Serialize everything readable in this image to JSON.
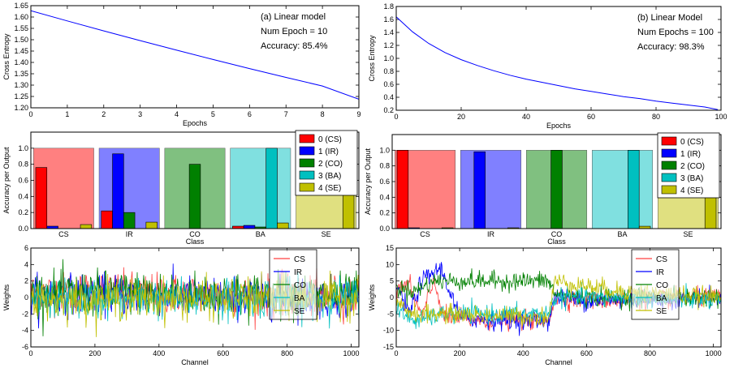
{
  "chart_data": [
    {
      "id": "a",
      "type": "line",
      "xlabel": "Epochs",
      "ylabel": "Cross Entropy",
      "xlim": [
        0,
        9
      ],
      "ylim": [
        1.2,
        1.65
      ],
      "xticks": [
        "0",
        "1",
        "2",
        "3",
        "4",
        "5",
        "6",
        "7",
        "8",
        "9"
      ],
      "yticks": [
        "1.20",
        "1.25",
        "1.30",
        "1.35",
        "1.40",
        "1.45",
        "1.50",
        "1.55",
        "1.60",
        "1.65"
      ],
      "annotation": [
        "(a) Linear model",
        "Num Epoch = 10",
        "Accuracy: 85.4%"
      ],
      "series": [
        {
          "color": "#0000ff",
          "x": [
            0,
            1,
            2,
            3,
            4,
            5,
            6,
            7,
            8,
            9
          ],
          "y": [
            1.628,
            1.583,
            1.539,
            1.496,
            1.454,
            1.413,
            1.373,
            1.334,
            1.296,
            1.238
          ]
        }
      ]
    },
    {
      "id": "b",
      "type": "line",
      "xlabel": "Epochs",
      "ylabel": "Cross Entropy",
      "xlim": [
        0,
        100
      ],
      "ylim": [
        0.2,
        1.8
      ],
      "xticks": [
        "0",
        "20",
        "40",
        "60",
        "80",
        "100"
      ],
      "yticks": [
        "0.2",
        "0.4",
        "0.6",
        "0.8",
        "1.0",
        "1.2",
        "1.4",
        "1.6",
        "1.8"
      ],
      "annotation": [
        "(b) Linear Model",
        "Num Epochs = 100",
        "Accuracy: 98.3%"
      ],
      "series": [
        {
          "color": "#0000ff",
          "x": [
            0,
            5,
            10,
            15,
            20,
            25,
            30,
            35,
            40,
            45,
            50,
            55,
            60,
            65,
            70,
            75,
            80,
            85,
            90,
            95,
            99
          ],
          "y": [
            1.64,
            1.41,
            1.23,
            1.09,
            0.98,
            0.89,
            0.81,
            0.74,
            0.68,
            0.63,
            0.58,
            0.53,
            0.49,
            0.45,
            0.41,
            0.38,
            0.34,
            0.31,
            0.28,
            0.25,
            0.21
          ]
        }
      ]
    },
    {
      "id": "c",
      "type": "bar",
      "xlabel": "Class",
      "ylabel": "Accuracy per Output",
      "ylim": [
        0,
        1.2
      ],
      "yticks": [
        "0.0",
        "0.2",
        "0.4",
        "0.6",
        "0.8",
        "1.0"
      ],
      "categories": [
        "CS",
        "IR",
        "CO",
        "BA",
        "SE"
      ],
      "class_colors": [
        "#ff8080",
        "#8080ff",
        "#80c080",
        "#80e0e0",
        "#e0e080"
      ],
      "series": [
        {
          "name": "0 (CS)",
          "color": "#ff0000",
          "values": [
            0.76,
            0.22,
            0.0,
            0.03,
            0.0
          ]
        },
        {
          "name": "1 (IR)",
          "color": "#0000ff",
          "values": [
            0.03,
            0.93,
            0.0,
            0.04,
            0.0
          ]
        },
        {
          "name": "2 (CO)",
          "color": "#008000",
          "values": [
            0.0,
            0.2,
            0.8,
            0.02,
            0.0
          ]
        },
        {
          "name": "3 (BA)",
          "color": "#00c0c0",
          "values": [
            0.0,
            0.0,
            0.0,
            1.0,
            0.0
          ]
        },
        {
          "name": "4 (SE)",
          "color": "#c0c000",
          "values": [
            0.05,
            0.08,
            0.0,
            0.07,
            0.65
          ]
        }
      ]
    },
    {
      "id": "d",
      "type": "bar",
      "xlabel": "Class",
      "ylabel": "Accuracy per Output",
      "ylim": [
        0,
        1.2
      ],
      "yticks": [
        "0.0",
        "0.2",
        "0.4",
        "0.6",
        "0.8",
        "1.0"
      ],
      "categories": [
        "CS",
        "IR",
        "CO",
        "BA",
        "SE"
      ],
      "class_colors": [
        "#ff8080",
        "#8080ff",
        "#80c080",
        "#80e0e0",
        "#e0e080"
      ],
      "series": [
        {
          "name": "0 (CS)",
          "color": "#ff0000",
          "values": [
            1.0,
            0.0,
            0.0,
            0.0,
            0.0
          ]
        },
        {
          "name": "1 (IR)",
          "color": "#0000ff",
          "values": [
            0.01,
            0.98,
            0.0,
            0.0,
            0.0
          ]
        },
        {
          "name": "2 (CO)",
          "color": "#008000",
          "values": [
            0.0,
            0.0,
            1.0,
            0.0,
            0.0
          ]
        },
        {
          "name": "3 (BA)",
          "color": "#00c0c0",
          "values": [
            0.0,
            0.0,
            0.0,
            1.0,
            0.0
          ]
        },
        {
          "name": "4 (SE)",
          "color": "#c0c000",
          "values": [
            0.01,
            0.01,
            0.0,
            0.03,
            1.0
          ]
        }
      ]
    },
    {
      "id": "e",
      "type": "line",
      "xlabel": "Channel",
      "ylabel": "Weights",
      "xlim": [
        0,
        1024
      ],
      "ylim": [
        -6,
        6
      ],
      "xticks": [
        "0",
        "200",
        "400",
        "600",
        "800",
        "1000"
      ],
      "yticks": [
        "-6",
        "-4",
        "-2",
        "0",
        "2",
        "4",
        "6"
      ],
      "legend": [
        "CS",
        "IR",
        "CO",
        "BA",
        "SE"
      ],
      "series": [
        {
          "name": "CS",
          "color": "#ff4040",
          "profile": [
            [
              0,
              0.5
            ],
            [
              200,
              0.8
            ],
            [
              400,
              0.5
            ],
            [
              600,
              0.3
            ],
            [
              800,
              0.2
            ],
            [
              1024,
              0.2
            ]
          ],
          "noise": 1.2
        },
        {
          "name": "IR",
          "color": "#0000ff",
          "profile": [
            [
              0,
              0.3
            ],
            [
              200,
              0.5
            ],
            [
              400,
              0.2
            ],
            [
              600,
              0.1
            ],
            [
              800,
              0
            ],
            [
              1024,
              0
            ]
          ],
          "noise": 1.2
        },
        {
          "name": "CO",
          "color": "#008000",
          "profile": [
            [
              0,
              0.5
            ],
            [
              200,
              0.6
            ],
            [
              400,
              0.6
            ],
            [
              600,
              0.4
            ],
            [
              800,
              0.3
            ],
            [
              1024,
              0.2
            ]
          ],
          "noise": 1.3
        },
        {
          "name": "BA",
          "color": "#00c0c0",
          "profile": [
            [
              0,
              -0.3
            ],
            [
              200,
              -0.2
            ],
            [
              400,
              -0.2
            ],
            [
              600,
              -0.1
            ],
            [
              800,
              0
            ],
            [
              1024,
              0
            ]
          ],
          "noise": 1.2
        },
        {
          "name": "SE",
          "color": "#c0c000",
          "profile": [
            [
              0,
              -0.2
            ],
            [
              200,
              -0.3
            ],
            [
              400,
              -0.2
            ],
            [
              600,
              -0.2
            ],
            [
              800,
              0
            ],
            [
              1024,
              0
            ]
          ],
          "noise": 1.2
        }
      ]
    },
    {
      "id": "f",
      "type": "line",
      "xlabel": "Channel",
      "ylabel": "Weights",
      "xlim": [
        0,
        1024
      ],
      "ylim": [
        -15,
        15
      ],
      "xticks": [
        "0",
        "200",
        "400",
        "600",
        "800",
        "1000"
      ],
      "yticks": [
        "-15",
        "-10",
        "-5",
        "0",
        "5",
        "10",
        "15"
      ],
      "legend": [
        "CS",
        "IR",
        "CO",
        "BA",
        "SE"
      ],
      "series": [
        {
          "name": "CS",
          "color": "#ff4040",
          "profile": [
            [
              0,
              3
            ],
            [
              40,
              4
            ],
            [
              80,
              -6
            ],
            [
              120,
              5
            ],
            [
              150,
              -6
            ],
            [
              250,
              -7
            ],
            [
              480,
              -7
            ],
            [
              500,
              0
            ],
            [
              600,
              -1
            ],
            [
              1024,
              0
            ]
          ],
          "noise": 1.4
        },
        {
          "name": "IR",
          "color": "#0000ff",
          "profile": [
            [
              0,
              4
            ],
            [
              40,
              -5
            ],
            [
              80,
              5
            ],
            [
              140,
              9
            ],
            [
              200,
              -6
            ],
            [
              300,
              -7
            ],
            [
              480,
              -7
            ],
            [
              500,
              0
            ],
            [
              600,
              -1
            ],
            [
              1024,
              0
            ]
          ],
          "noise": 1.4
        },
        {
          "name": "CO",
          "color": "#008000",
          "profile": [
            [
              0,
              3
            ],
            [
              60,
              2
            ],
            [
              120,
              5
            ],
            [
              200,
              5
            ],
            [
              480,
              5
            ],
            [
              500,
              1
            ],
            [
              600,
              0
            ],
            [
              800,
              0
            ],
            [
              1024,
              0
            ]
          ],
          "noise": 1.4
        },
        {
          "name": "BA",
          "color": "#00c0c0",
          "profile": [
            [
              0,
              -4
            ],
            [
              60,
              -7
            ],
            [
              160,
              -5
            ],
            [
              250,
              -5
            ],
            [
              480,
              -5
            ],
            [
              500,
              0
            ],
            [
              700,
              0
            ],
            [
              1024,
              -1
            ]
          ],
          "noise": 1.4
        },
        {
          "name": "SE",
          "color": "#c0c000",
          "profile": [
            [
              0,
              -2
            ],
            [
              60,
              -5
            ],
            [
              160,
              -5
            ],
            [
              480,
              -6
            ],
            [
              500,
              5
            ],
            [
              700,
              2
            ],
            [
              1024,
              0
            ]
          ],
          "noise": 1.4
        }
      ]
    }
  ]
}
